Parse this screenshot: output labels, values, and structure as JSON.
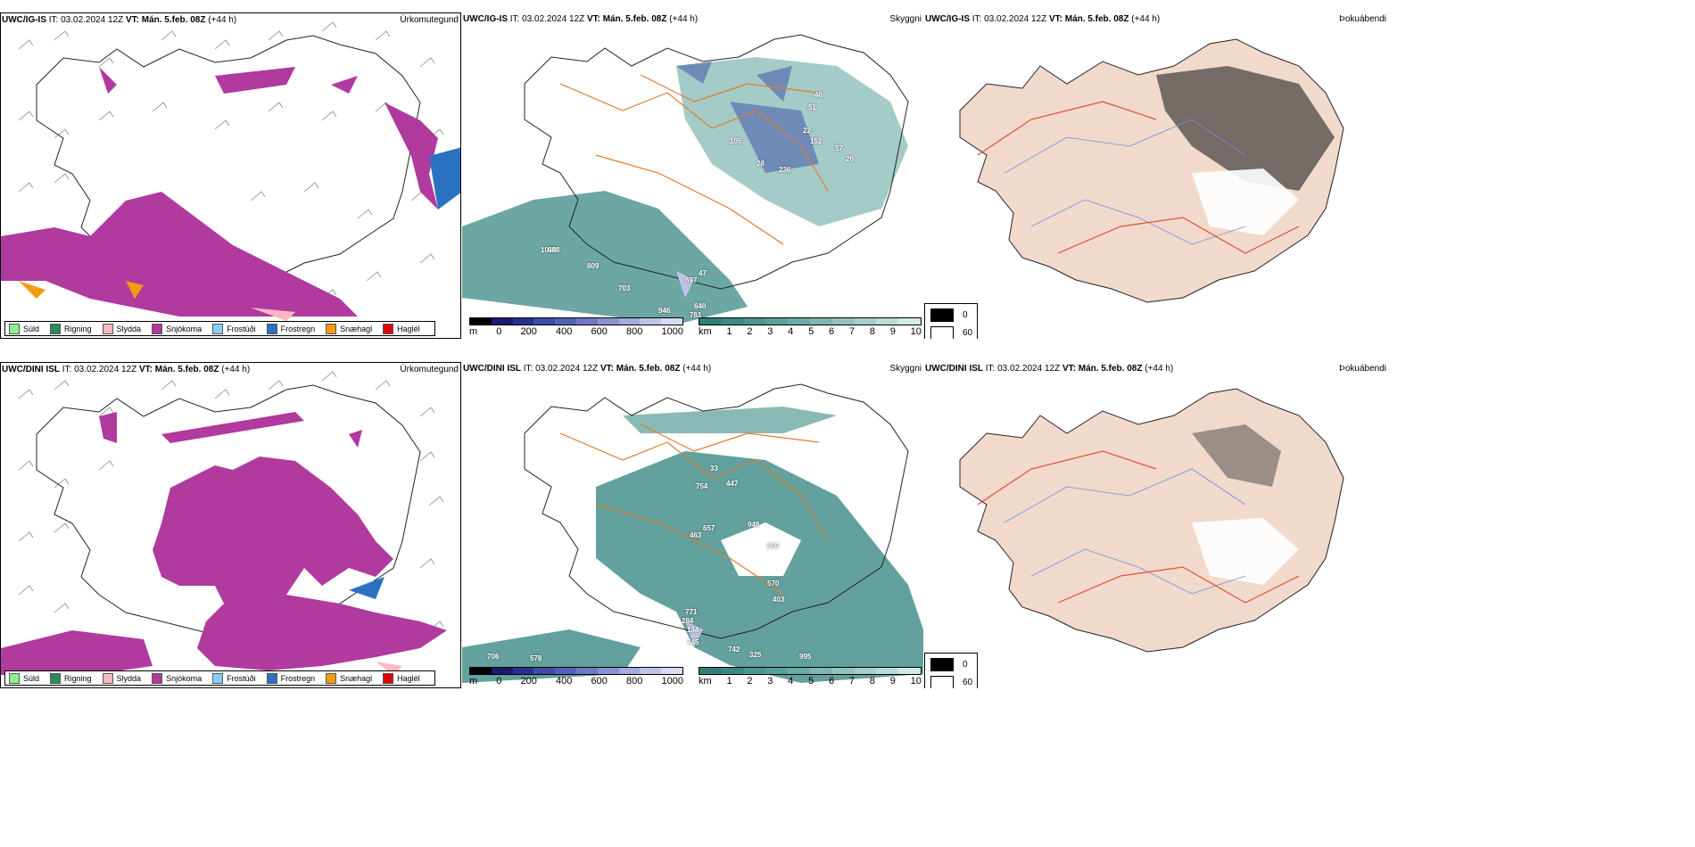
{
  "rows": [
    {
      "model": "UWC/IG-IS",
      "it_label": "IT:",
      "it_value": "03.02.2024 12Z",
      "vt_label": "VT:",
      "vt_value": "Mán. 5.feb. 08Z",
      "lead": "(+44 h)"
    },
    {
      "model": "UWC/DINI ISL",
      "it_label": "IT:",
      "it_value": "03.02.2024 12Z",
      "vt_label": "VT:",
      "vt_value": "Mán. 5.feb. 08Z",
      "lead": "(+44 h)"
    }
  ],
  "panel_types": {
    "precip": "Úrkomutegund",
    "vis": "Skyggni",
    "fog": "Þokuábendi"
  },
  "precip_legend": [
    {
      "label": "Súld",
      "color": "#90ee90"
    },
    {
      "label": "Rigning",
      "color": "#2e8b57"
    },
    {
      "label": "Slydda",
      "color": "#ffb6c1"
    },
    {
      "label": "Snjókoma",
      "color": "#b03a9e"
    },
    {
      "label": "Frostúði",
      "color": "#87cefa"
    },
    {
      "label": "Frostregn",
      "color": "#2a72c0"
    },
    {
      "label": "Snæhagl",
      "color": "#f39c12"
    },
    {
      "label": "Haglél",
      "color": "#e00000"
    }
  ],
  "vis_colorbar_m": {
    "unit": "m",
    "ticks": [
      "0",
      "200",
      "400",
      "600",
      "800",
      "1000"
    ],
    "colors": [
      "#000000",
      "#1a1a6e",
      "#28308f",
      "#3c4aa8",
      "#5560b8",
      "#6f78c6",
      "#8a92d3",
      "#a4abde",
      "#bfc3e8",
      "#d8dbf2"
    ]
  },
  "vis_colorbar_km": {
    "unit": "km",
    "ticks": [
      "1",
      "2",
      "3",
      "4",
      "5",
      "6",
      "7",
      "8",
      "9",
      "10"
    ],
    "colors": [
      "#2e7f7a",
      "#3b8a84",
      "#4a958f",
      "#5aa09a",
      "#6cabA5",
      "#7eb7b1",
      "#92c3be",
      "#a7cfcb",
      "#bcdcd8",
      "#d3e9e6"
    ]
  },
  "fog_legend": [
    {
      "label": "0",
      "color": "#000000"
    },
    {
      "label": "60",
      "color": "#ffffff"
    }
  ],
  "vis_labels_top": [
    "1020",
    "51",
    "46",
    "105",
    "152",
    "22",
    "28",
    "236",
    "57",
    "26",
    "688",
    "809",
    "703",
    "697",
    "946",
    "640",
    "761",
    "47"
  ],
  "vis_labels_bottom": [
    "33",
    "754",
    "447",
    "657",
    "463",
    "948",
    "800",
    "570",
    "403",
    "771",
    "284",
    "134",
    "745",
    "742",
    "325",
    "995",
    "706",
    "578"
  ]
}
